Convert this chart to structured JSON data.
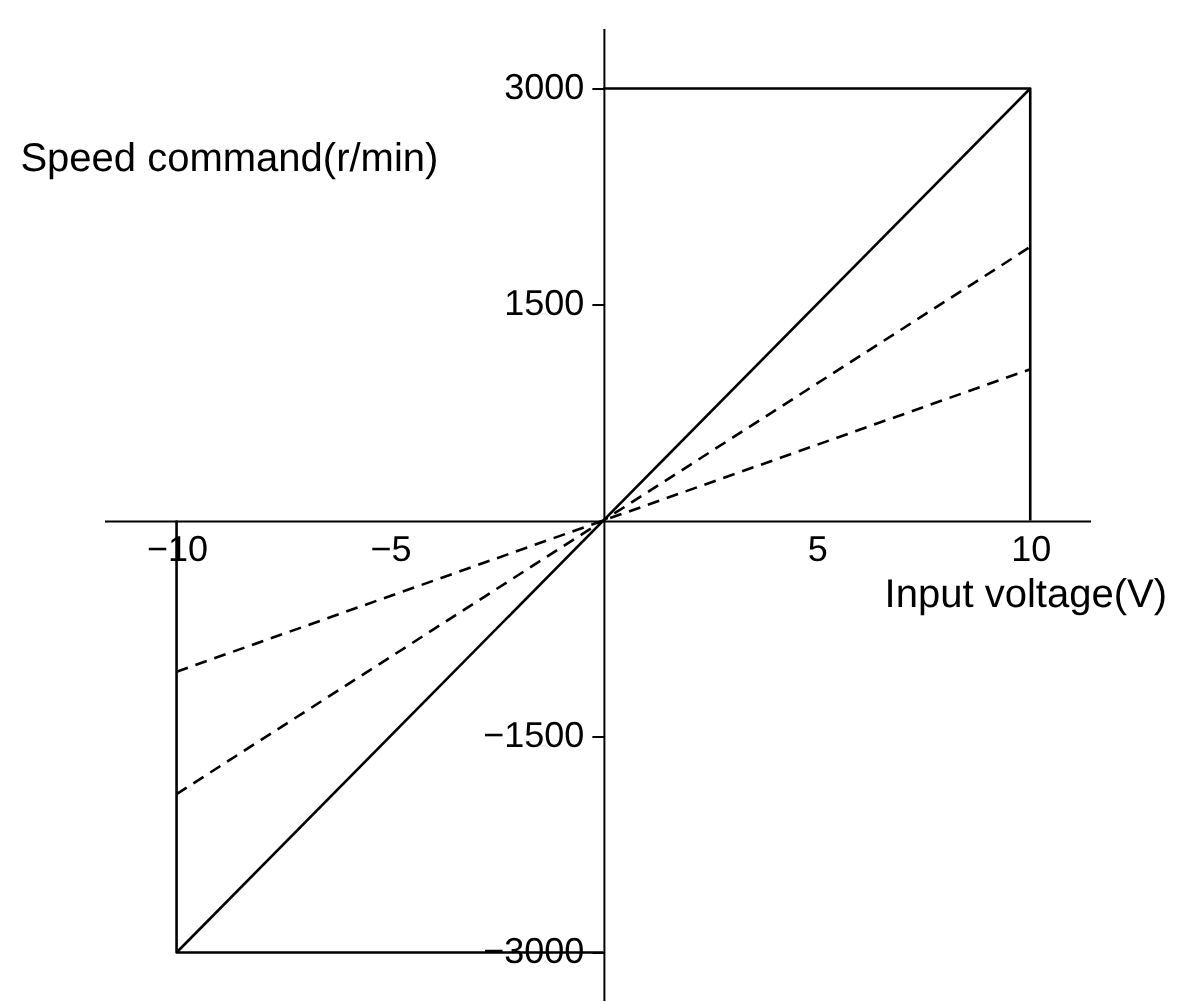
{
  "chart_data": {
    "type": "line",
    "xlabel": "Input voltage(V)",
    "ylabel": "Speed command(r/min)",
    "xlim": [
      -11.7,
      11.4
    ],
    "ylim": [
      -3330,
      3420
    ],
    "xticks": [
      -10,
      -5,
      5,
      10
    ],
    "yticks": [
      -3000,
      -1500,
      1500,
      3000
    ],
    "grid": false,
    "marker": "none",
    "series": [
      {
        "color": "#000000",
        "line_style": "solid",
        "x": [
          -10,
          10
        ],
        "values": [
          -3000,
          3000
        ]
      },
      {
        "color": "#000000",
        "line_style": "dashed",
        "x": [
          -10,
          10
        ],
        "values": [
          -1900,
          1900
        ]
      },
      {
        "color": "#000000",
        "line_style": "dashed",
        "x": [
          -10,
          10
        ],
        "values": [
          -1050,
          1050
        ]
      },
      {
        "color": "#000000",
        "line_style": "solid",
        "x": [
          0,
          10,
          10
        ],
        "values": [
          3000,
          3000,
          0
        ]
      },
      {
        "color": "#000000",
        "line_style": "solid",
        "x": [
          -10,
          -10,
          0
        ],
        "values": [
          0,
          -3000,
          -3000
        ]
      }
    ]
  }
}
